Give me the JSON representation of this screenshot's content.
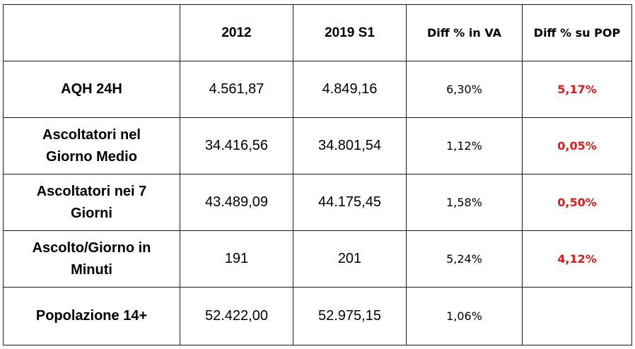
{
  "header": {
    "corner": "",
    "col_2012": "2012",
    "col_2019": "2019 S1",
    "col_va": "Diff % in VA",
    "col_pop": "Diff % su POP"
  },
  "colors": {
    "highlight": "#e01b1b",
    "border": "#1a1a1a"
  },
  "rows": [
    {
      "label_line1": "AQH 24H",
      "label_line2": "",
      "v2012": "4.561,87",
      "v2019": "4.849,16",
      "diff_va": "6,30%",
      "diff_pop": "5,17%"
    },
    {
      "label_line1": "Ascoltatori nel",
      "label_line2": "Giorno Medio",
      "v2012": "34.416,56",
      "v2019": "34.801,54",
      "diff_va": "1,12%",
      "diff_pop": "0,05%"
    },
    {
      "label_line1": "Ascoltatori nei 7",
      "label_line2": "Giorni",
      "v2012": "43.489,09",
      "v2019": "44.175,45",
      "diff_va": "1,58%",
      "diff_pop": "0,50%"
    },
    {
      "label_line1": "Ascolto/Giorno in",
      "label_line2": "Minuti",
      "v2012": "191",
      "v2019": "201",
      "diff_va": "5,24%",
      "diff_pop": "4,12%"
    },
    {
      "label_line1": "Popolazione 14+",
      "label_line2": "",
      "v2012": "52.422,00",
      "v2019": "52.975,15",
      "diff_va": "1,06%",
      "diff_pop": ""
    }
  ]
}
